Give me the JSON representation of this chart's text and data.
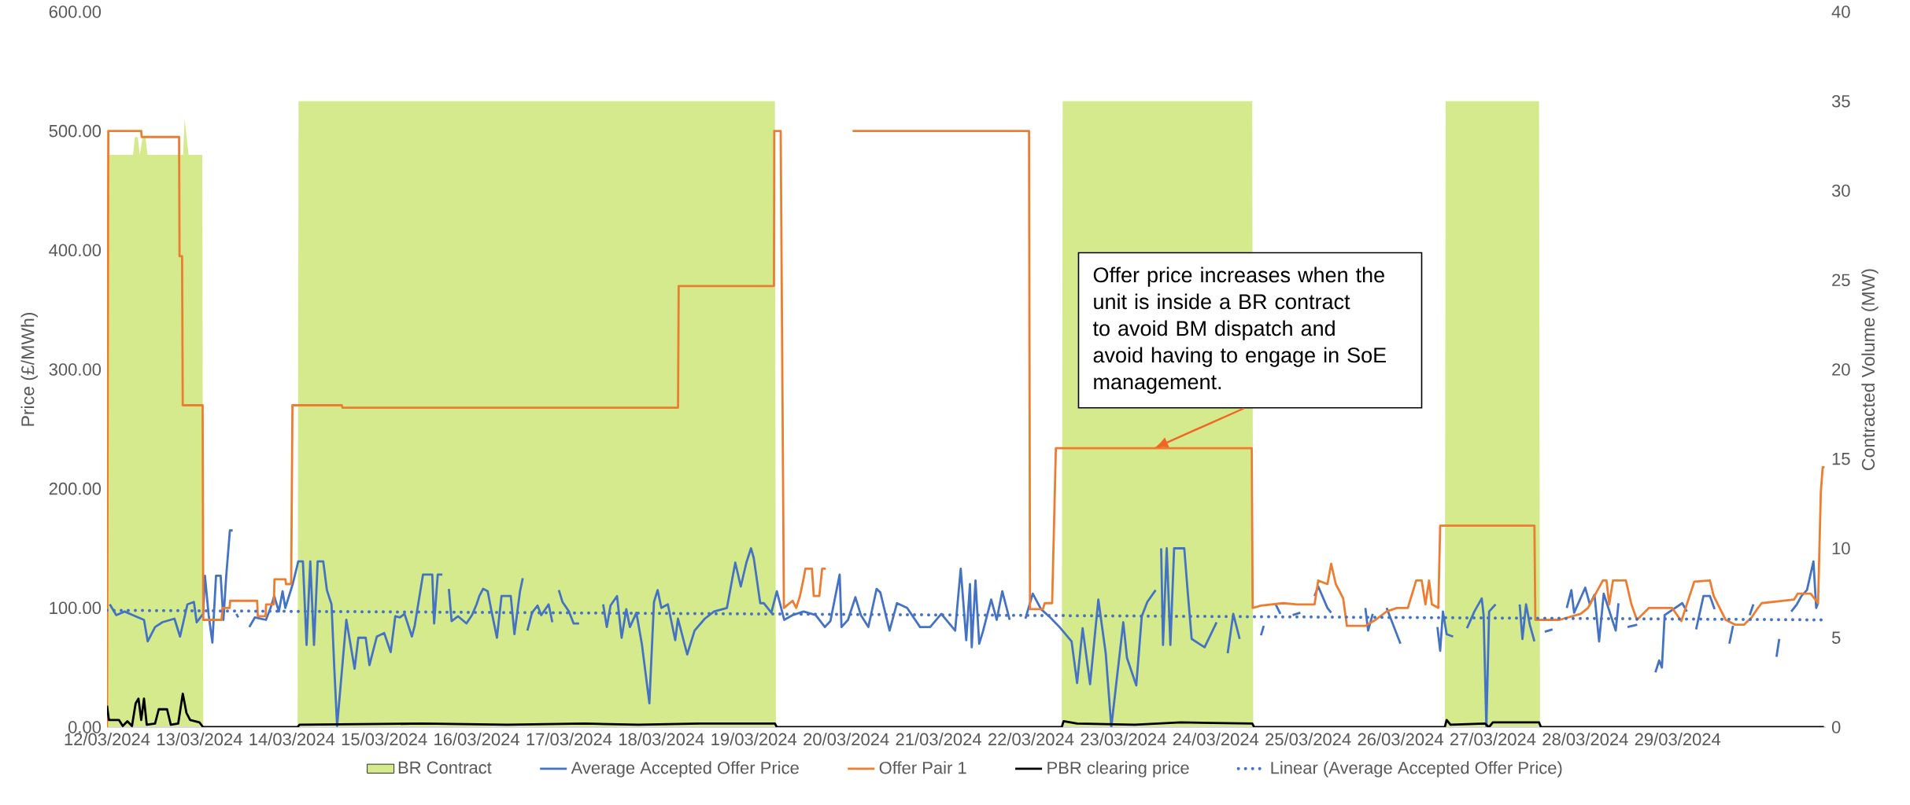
{
  "chart_data": {
    "type": "line",
    "xlim": [
      "2024-03-12",
      "2024-03-30T14:30"
    ],
    "xticks": [
      {
        "value": "2024-03-12",
        "label": "12/03/2024"
      },
      {
        "value": "2024-03-13",
        "label": "13/03/2024"
      },
      {
        "value": "2024-03-14",
        "label": "14/03/2024"
      },
      {
        "value": "2024-03-15",
        "label": "15/03/2024"
      },
      {
        "value": "2024-03-16",
        "label": "16/03/2024"
      },
      {
        "value": "2024-03-17",
        "label": "17/03/2024"
      },
      {
        "value": "2024-03-18",
        "label": "18/03/2024"
      },
      {
        "value": "2024-03-19",
        "label": "19/03/2024"
      },
      {
        "value": "2024-03-20",
        "label": "20/03/2024"
      },
      {
        "value": "2024-03-21",
        "label": "21/03/2024"
      },
      {
        "value": "2024-03-22",
        "label": "22/03/2024"
      },
      {
        "value": "2024-03-23",
        "label": "23/03/2024"
      },
      {
        "value": "2024-03-24",
        "label": "24/03/2024"
      },
      {
        "value": "2024-03-25",
        "label": "25/03/2024"
      },
      {
        "value": "2024-03-26",
        "label": "26/03/2024"
      },
      {
        "value": "2024-03-27",
        "label": "27/03/2024"
      },
      {
        "value": "2024-03-28",
        "label": "28/03/2024"
      },
      {
        "value": "2024-03-29",
        "label": "29/03/2024"
      }
    ],
    "ylim": [
      0,
      600
    ],
    "yticks": [
      {
        "value": 0,
        "label": "0.00"
      },
      {
        "value": 100,
        "label": "100.00"
      },
      {
        "value": 200,
        "label": "200.00"
      },
      {
        "value": 300,
        "label": "300.00"
      },
      {
        "value": 400,
        "label": "400.00"
      },
      {
        "value": 500,
        "label": "500.00"
      },
      {
        "value": 600,
        "label": "600.00"
      }
    ],
    "y2lim": [
      0,
      40
    ],
    "y2ticks": [
      0,
      5,
      10,
      15,
      20,
      25,
      30,
      35,
      40
    ],
    "ylabel": "Price (£/MWh)",
    "y2label": "Contracted Volume (MW)",
    "legend": "bottom",
    "annotations": [
      {
        "text": "Offer price increases when the unit is inside a BR contract to avoid BM dispatch and avoid having to engage in SoE management.",
        "x": "2024-03-23T08:00",
        "y": 234
      }
    ],
    "series": [
      {
        "name": "BR Contract",
        "type": "area",
        "axis": "y2",
        "color": "#d4ea8c",
        "x": [
          "2024-03-12T00:00",
          "2024-03-12T00:15",
          "2024-03-12T06:45",
          "2024-03-12T07:15",
          "2024-03-12T08:00",
          "2024-03-12T08:30",
          "2024-03-12T09:15",
          "2024-03-12T10:00",
          "2024-03-12T10:30",
          "2024-03-12T19:45",
          "2024-03-12T20:10",
          "2024-03-12T20:40",
          "2024-03-12T21:10",
          "2024-03-13T00:45",
          "2024-03-13T01:00",
          "2024-03-14T01:30",
          "2024-03-14T01:45",
          "2024-03-19T05:30",
          "2024-03-19T05:45",
          "2024-03-22T08:00",
          "2024-03-22T08:15",
          "2024-03-24T09:30",
          "2024-03-24T09:45",
          "2024-03-26T11:30",
          "2024-03-26T11:45",
          "2024-03-27T12:00",
          "2024-03-27T12:15",
          "2024-03-30T14:30"
        ],
        "values": [
          0,
          32,
          32,
          33,
          33,
          32,
          33,
          33,
          32,
          32,
          34,
          33,
          32,
          32,
          0,
          0,
          35,
          35,
          0,
          0,
          35,
          35,
          0,
          0,
          35,
          35,
          0,
          0
        ]
      },
      {
        "name": "Average Accepted Offer Price",
        "color": "#4472c4",
        "x": [
          "2024-03-12T00:43",
          "2024-03-12T02:24",
          "2024-03-12T04:34",
          "2024-03-12T06:43",
          "2024-03-12T09:36",
          "2024-03-12T10:34",
          "2024-03-12T12:29",
          "2024-03-12T14:24",
          "2024-03-12T17:31",
          "2024-03-12T18:58",
          "2024-03-12T20:53",
          "2024-03-12T22:34",
          "2024-03-12T23:17",
          "2024-03-13T00:58",
          "2024-03-13T01:26",
          "2024-03-13T02:24",
          "2024-03-13T03:22",
          "2024-03-13T04:19",
          "2024-03-13T05:31",
          "2024-03-13T06:14",
          "2024-03-13T06:58",
          "2024-03-13T07:55",
          "2024-03-13T08:38",
          "2024-03-13T09:07",
          "2024-03-13T09:36",
          "2024-03-13T10:05",
          "2024-03-13T11:17",
          "2024-03-13T12:58",
          "2024-03-13T14:24",
          "2024-03-13T17:17",
          "2024-03-13T18:29",
          "2024-03-13T19:26",
          "2024-03-13T20:38",
          "2024-03-13T21:36",
          "2024-03-13T22:19",
          "2024-03-14T00:14",
          "2024-03-14T01:41",
          "2024-03-14T02:53",
          "2024-03-14T03:50",
          "2024-03-14T04:48",
          "2024-03-14T05:46",
          "2024-03-14T06:43",
          "2024-03-14T08:10",
          "2024-03-14T09:07",
          "2024-03-14T10:19",
          "2024-03-14T11:02",
          "2024-03-14T11:46",
          "2024-03-14T14:10",
          "2024-03-14T16:19",
          "2024-03-14T17:17",
          "2024-03-14T19:12",
          "2024-03-14T20:10",
          "2024-03-14T22:05",
          "2024-03-15T00:00",
          "2024-03-15T01:41",
          "2024-03-15T02:53",
          "2024-03-15T04:05",
          "2024-03-15T05:17",
          "2024-03-15T07:12",
          "2024-03-15T07:55",
          "2024-03-15T10:05",
          "2024-03-15T12:29",
          "2024-03-15T12:58",
          "2024-03-15T13:55",
          "2024-03-15T15:07",
          "2024-03-15T15:50",
          "2024-03-15T16:48",
          "2024-03-15T17:31",
          "2024-03-15T19:12",
          "2024-03-15T21:22",
          "2024-03-15T22:48",
          "2024-03-16T00:00",
          "2024-03-16T00:43",
          "2024-03-16T01:41",
          "2024-03-16T02:53",
          "2024-03-16T03:50",
          "2024-03-16T05:17",
          "2024-03-16T06:29",
          "2024-03-16T08:53",
          "2024-03-16T09:50",
          "2024-03-16T11:17",
          "2024-03-16T12:00",
          "2024-03-16T12:29",
          "2024-03-16T13:12",
          "2024-03-16T14:24",
          "2024-03-16T15:50",
          "2024-03-16T16:48",
          "2024-03-16T18:43",
          "2024-03-16T19:41",
          "2024-03-16T20:24",
          "2024-03-16T21:22",
          "2024-03-16T22:19",
          "2024-03-17T00:00",
          "2024-03-17T01:12",
          "2024-03-17T02:38",
          "2024-03-17T03:36",
          "2024-03-17T08:53",
          "2024-03-17T09:50",
          "2024-03-17T10:48",
          "2024-03-17T12:29",
          "2024-03-17T13:41",
          "2024-03-17T14:53",
          "2024-03-17T15:50",
          "2024-03-17T17:31",
          "2024-03-17T18:58",
          "2024-03-17T20:53",
          "2024-03-17T22:05",
          "2024-03-17T23:02",
          "2024-03-18T00:00",
          "2024-03-18T01:41",
          "2024-03-18T03:36",
          "2024-03-18T04:19",
          "2024-03-18T06:43",
          "2024-03-18T08:38",
          "2024-03-18T11:17",
          "2024-03-18T13:41",
          "2024-03-18T17:02",
          "2024-03-18T19:12",
          "2024-03-18T20:38",
          "2024-03-18T22:05",
          "2024-03-18T23:17",
          "2024-03-19T00:00",
          "2024-03-19T01:41",
          "2024-03-19T02:38",
          "2024-03-19T04:34",
          "2024-03-19T06:00",
          "2024-03-19T07:55",
          "2024-03-19T10:05",
          "2024-03-19T12:58",
          "2024-03-19T16:05",
          "2024-03-19T18:29",
          "2024-03-19T19:55",
          "2024-03-19T22:19",
          "2024-03-19T22:48",
          "2024-03-20T00:29",
          "2024-03-20T02:24",
          "2024-03-20T03:50",
          "2024-03-20T05:46",
          "2024-03-20T07:55",
          "2024-03-20T08:53",
          "2024-03-20T11:17",
          "2024-03-20T13:12",
          "2024-03-20T15:50",
          "2024-03-20T19:12",
          "2024-03-20T21:50",
          "2024-03-21T00:43",
          "2024-03-21T04:19",
          "2024-03-21T05:46",
          "2024-03-21T07:12",
          "2024-03-21T08:10",
          "2024-03-21T08:38",
          "2024-03-21T09:36",
          "2024-03-21T10:34",
          "2024-03-21T11:31",
          "2024-03-21T13:41",
          "2024-03-21T15:07",
          "2024-03-21T16:34",
          "2024-03-21T18:29",
          "2024-03-21T20:24",
          "2024-03-21T22:34",
          "2024-03-22T00:29",
          "2024-03-22T02:38",
          "2024-03-22T05:02",
          "2024-03-22T07:26",
          "2024-03-22T10:34",
          "2024-03-22T12:00",
          "2024-03-22T13:26",
          "2024-03-22T15:22",
          "2024-03-22T17:31",
          "2024-03-22T19:26",
          "2024-03-22T20:53",
          "2024-03-23T00:00",
          "2024-03-23T00:58",
          "2024-03-23T03:22",
          "2024-03-23T04:48",
          "2024-03-23T06:14",
          "2024-03-23T08:24",
          "2024-03-23T09:07",
          "2024-03-23T09:50",
          "2024-03-23T10:19",
          "2024-03-23T11:17",
          "2024-03-23T12:14",
          "2024-03-23T13:12",
          "2024-03-23T15:50",
          "2024-03-23T16:48",
          "2024-03-23T17:46",
          "2024-03-23T21:07",
          "2024-03-24T00:14",
          "2024-03-24T01:41",
          "2024-03-24T03:07",
          "2024-03-24T04:34",
          "2024-03-24T06:14",
          "2024-03-24T08:24",
          "2024-03-24T11:46",
          "2024-03-24T12:29",
          "2024-03-24T13:26",
          "2024-03-24T15:36",
          "2024-03-24T16:48",
          "2024-03-24T18:43",
          "2024-03-24T20:00",
          "2024-03-24T22:00",
          "2024-03-24T22:48",
          "2024-03-25T01:41",
          "2024-03-25T02:38",
          "2024-03-25T05:02",
          "2024-03-25T06:00",
          "2024-03-25T09:36",
          "2024-03-25T14:53",
          "2024-03-25T15:36",
          "2024-03-25T16:48",
          "2024-03-25T18:43",
          "2024-03-25T20:24",
          "2024-03-26T00:00",
          "2024-03-26T02:00",
          "2024-03-26T09:36",
          "2024-03-26T10:19",
          "2024-03-26T11:02",
          "2024-03-26T12:00",
          "2024-03-26T13:41",
          "2024-03-26T15:36",
          "2024-03-26T17:17",
          "2024-03-26T19:12",
          "2024-03-26T21:07",
          "2024-03-26T21:36",
          "2024-03-26T22:19",
          "2024-03-26T23:02",
          "2024-03-27T00:43",
          "2024-03-27T03:36",
          "2024-03-27T06:58",
          "2024-03-27T07:41",
          "2024-03-27T08:38",
          "2024-03-27T09:36",
          "2024-03-27T10:48",
          "2024-03-27T12:00",
          "2024-03-27T13:30",
          "2024-03-27T15:30",
          "2024-03-27T16:48",
          "2024-03-27T19:12",
          "2024-03-27T20:24",
          "2024-03-27T21:07",
          "2024-03-28T00:00",
          "2024-03-28T01:12",
          "2024-03-28T02:24",
          "2024-03-28T03:36",
          "2024-03-28T04:48",
          "2024-03-28T07:55",
          "2024-03-28T08:38",
          "2024-03-28T10:05",
          "2024-03-28T11:00",
          "2024-03-28T13:30",
          "2024-03-28T14:24",
          "2024-03-28T18:14",
          "2024-03-28T19:12",
          "2024-03-28T19:55",
          "2024-03-28T20:38",
          "2024-03-29T01:12",
          "2024-03-29T02:24",
          "2024-03-29T03:36",
          "2024-03-29T04:48",
          "2024-03-29T06:43",
          "2024-03-29T08:24",
          "2024-03-29T09:36",
          "2024-03-29T11:31",
          "2024-03-29T13:26",
          "2024-03-29T14:24",
          "2024-03-29T16:48",
          "2024-03-29T18:43",
          "2024-03-29T19:41",
          "2024-03-29T22:48",
          "2024-03-30T01:41",
          "2024-03-30T02:24",
          "2024-03-30T03:50",
          "2024-03-30T05:31",
          "2024-03-30T06:58",
          "2024-03-30T08:10",
          "2024-03-30T09:36",
          "2024-03-30T11:17",
          "2024-03-30T12:00",
          "2024-03-30T12:29"
        ],
        "values": [
          103,
          94,
          97,
          94,
          90,
          72,
          84,
          88,
          91,
          76,
          103,
          105,
          88,
          95,
          127,
          94,
          71,
          127,
          127,
          90,
          127,
          165,
          165,
          null,
          95,
          92,
          null,
          84,
          92,
          90,
          100,
          110,
          97,
          114,
          100,
          120,
          139,
          139,
          69,
          139,
          69,
          139,
          139,
          115,
          103,
          50,
          1,
          90,
          49,
          75,
          75,
          52,
          76,
          79,
          63,
          93,
          92,
          95,
          76,
          85,
          128,
          128,
          87,
          128,
          128,
          null,
          116,
          89,
          93,
          87,
          94,
          103,
          110,
          116,
          114,
          98,
          75,
          110,
          110,
          78,
          114,
          125,
          null,
          81,
          96,
          102,
          94,
          103,
          88,
          null,
          115,
          105,
          97,
          87,
          87,
          null,
          103,
          84,
          102,
          110,
          75,
          99,
          84,
          96,
          69,
          20,
          105,
          115,
          100,
          103,
          73,
          91,
          61,
          81,
          91,
          97,
          100,
          138,
          118,
          138,
          150,
          142,
          104,
          104,
          96,
          114,
          90,
          94,
          97,
          94,
          84,
          89,
          128,
          84,
          90,
          109,
          94,
          84,
          116,
          113,
          81,
          104,
          100,
          84,
          84,
          95,
          81,
          133,
          73,
          120,
          67,
          123,
          70,
          80,
          107,
          90,
          114,
          90,
          null,
          91,
          112,
          99,
          92,
          84,
          72,
          37,
          83,
          36,
          107,
          62,
          0,
          88,
          58,
          35,
          93,
          105,
          115,
          null,
          150,
          69,
          150,
          69,
          150,
          150,
          111,
          74,
          67,
          88,
          null,
          62,
          95,
          74,
          null,
          77,
          85,
          null,
          103,
          95,
          null,
          94,
          96,
          null,
          110,
          118,
          100,
          96,
          null,
          100,
          81,
          95,
          null,
          100,
          70,
          null,
          84,
          64,
          97,
          78,
          76,
          null,
          83,
          97,
          108,
          94,
          0,
          97,
          103,
          null,
          103,
          74,
          103,
          86,
          72,
          null,
          80,
          82,
          null,
          100,
          115,
          96,
          117,
          103,
          111,
          72,
          112,
          81,
          104,
          null,
          84,
          86,
          null,
          46,
          56,
          50,
          94,
          104,
          97,
          null,
          82,
          110,
          110,
          99,
          null,
          70,
          85,
          null,
          94,
          103,
          null,
          59,
          74,
          null,
          97,
          103,
          110,
          115,
          139,
          100,
          104
        ]
      },
      {
        "name": "Offer Pair 1",
        "color": "#ed7d31",
        "x": [
          "2024-03-12T00:00",
          "2024-03-12T00:20",
          "2024-03-12T08:53",
          "2024-03-12T09:00",
          "2024-03-12T18:43",
          "2024-03-12T18:50",
          "2024-03-12T19:30",
          "2024-03-12T19:40",
          "2024-03-13T00:50",
          "2024-03-13T01:00",
          "2024-03-13T05:45",
          "2024-03-13T06:00",
          "2024-03-13T07:50",
          "2024-03-13T08:00",
          "2024-03-13T15:00",
          "2024-03-13T15:10",
          "2024-03-13T17:10",
          "2024-03-13T17:20",
          "2024-03-13T19:20",
          "2024-03-13T19:30",
          "2024-03-13T22:20",
          "2024-03-13T22:30",
          "2024-03-13T23:50",
          "2024-03-14T00:10",
          "2024-03-14T13:00",
          "2024-03-14T13:10",
          "2024-03-18T04:20",
          "2024-03-18T04:30",
          "2024-03-19T05:15",
          "2024-03-19T05:20",
          "2024-03-19T07:00",
          "2024-03-19T07:50",
          "2024-03-19T10:05",
          "2024-03-19T11:02",
          "2024-03-19T12:00",
          "2024-03-19T12:58",
          "2024-03-19T13:26",
          "2024-03-19T15:07",
          "2024-03-19T15:36",
          "2024-03-19T17:02",
          "2024-03-19T17:46",
          "2024-03-19T18:43",
          "2024-03-19T18:58",
          "2024-03-20T01:41",
          "2024-03-21T23:31",
          "2024-03-21T23:46",
          "2024-03-22T03:07",
          "2024-03-22T03:36",
          "2024-03-22T05:31",
          "2024-03-22T06:29",
          "2024-03-24T09:22",
          "2024-03-24T09:36",
          "2024-03-24T11:46",
          "2024-03-24T17:31",
          "2024-03-24T21:07",
          "2024-03-25T01:41",
          "2024-03-25T02:38",
          "2024-03-25T05:02",
          "2024-03-25T06:00",
          "2024-03-25T07:12",
          "2024-03-25T09:07",
          "2024-03-25T10:05",
          "2024-03-25T14:53",
          "2024-03-25T17:31",
          "2024-03-25T20:24",
          "2024-03-25T23:02",
          "2024-03-26T01:55",
          "2024-03-26T04:05",
          "2024-03-26T05:31",
          "2024-03-26T06:29",
          "2024-03-26T07:26",
          "2024-03-26T08:10",
          "2024-03-26T09:50",
          "2024-03-26T10:19",
          "2024-03-27T10:48",
          "2024-03-27T11:02",
          "2024-03-27T17:17",
          "2024-03-27T22:48",
          "2024-03-28T00:43",
          "2024-03-28T04:34",
          "2024-03-28T05:31",
          "2024-03-28T06:14",
          "2024-03-28T07:12",
          "2024-03-28T10:34",
          "2024-03-28T12:00",
          "2024-03-28T13:26",
          "2024-03-28T16:34",
          "2024-03-28T22:34",
          "2024-03-29T00:58",
          "2024-03-29T04:19",
          "2024-03-29T08:24",
          "2024-03-29T09:22",
          "2024-03-29T12:29",
          "2024-03-29T14:53",
          "2024-03-29T17:17",
          "2024-03-29T19:12",
          "2024-03-29T20:53",
          "2024-03-29T21:50",
          "2024-03-30T06:14",
          "2024-03-30T07:12",
          "2024-03-30T10:34",
          "2024-03-30T12:29",
          "2024-03-30T13:12",
          "2024-03-30T13:41",
          "2024-03-30T14:10"
        ],
        "values": [
          0,
          500,
          500,
          495,
          495,
          395,
          395,
          270,
          270,
          90,
          90,
          100,
          100,
          106,
          106,
          93,
          93,
          103,
          103,
          124,
          124,
          120,
          120,
          270,
          270,
          268,
          268,
          370,
          370,
          500,
          500,
          100,
          106,
          100,
          110,
          125,
          133,
          133,
          110,
          110,
          133,
          133,
          null,
          500,
          500,
          99,
          99,
          104,
          104,
          234,
          234,
          100,
          102,
          104,
          103,
          103,
          123,
          120,
          137,
          120,
          108,
          85,
          85,
          90,
          97,
          100,
          100,
          123,
          123,
          103,
          123,
          103,
          100,
          169,
          169,
          90,
          90,
          95,
          100,
          123,
          123,
          103,
          123,
          123,
          103,
          90,
          100,
          100,
          89,
          122,
          123,
          110,
          90,
          86,
          86,
          92,
          100,
          104,
          107,
          112,
          112,
          104,
          197,
          218,
          218
        ]
      },
      {
        "name": "PBR clearing price",
        "color": "#000000",
        "x": [
          "2024-03-12T00:00",
          "2024-03-12T00:29",
          "2024-03-12T03:07",
          "2024-03-12T04:05",
          "2024-03-12T05:17",
          "2024-03-12T06:29",
          "2024-03-12T07:26",
          "2024-03-12T08:10",
          "2024-03-12T08:53",
          "2024-03-12T09:36",
          "2024-03-12T10:19",
          "2024-03-12T12:29",
          "2024-03-12T13:26",
          "2024-03-12T15:36",
          "2024-03-12T16:34",
          "2024-03-12T18:29",
          "2024-03-12T19:41",
          "2024-03-12T20:38",
          "2024-03-12T21:36",
          "2024-03-13T00:00",
          "2024-03-13T00:58",
          "2024-03-14T01:30",
          "2024-03-14T02:00",
          "2024-03-15T10:00",
          "2024-03-16T08:00",
          "2024-03-17T04:00",
          "2024-03-17T18:00",
          "2024-03-18T10:00",
          "2024-03-19T05:30",
          "2024-03-19T06:00",
          "2024-03-22T08:00",
          "2024-03-22T08:30",
          "2024-03-22T12:00",
          "2024-03-23T03:00",
          "2024-03-23T15:00",
          "2024-03-24T09:30",
          "2024-03-24T10:00",
          "2024-03-26T11:30",
          "2024-03-26T12:00",
          "2024-03-26T13:00",
          "2024-03-26T22:00",
          "2024-03-26T23:00",
          "2024-03-27T00:00",
          "2024-03-27T12:00",
          "2024-03-27T12:30",
          "2024-03-30T14:00"
        ],
        "values": [
          18,
          6,
          6,
          1,
          5,
          1,
          20,
          24,
          6,
          24,
          2,
          3,
          15,
          15,
          2,
          3,
          28,
          12,
          6,
          4,
          0,
          0,
          2,
          3,
          2,
          3,
          2,
          3,
          3,
          0,
          0,
          5,
          3,
          2,
          4,
          3,
          0,
          0,
          6,
          2,
          3,
          0,
          4,
          4,
          0,
          0
        ]
      },
      {
        "name": "Linear (Average Accepted Offer Price)",
        "line_style": "dotted",
        "color": "#4472c4",
        "x": [
          "2024-03-12T00:00",
          "2024-03-30T14:10"
        ],
        "values": [
          98,
          90
        ]
      }
    ]
  }
}
